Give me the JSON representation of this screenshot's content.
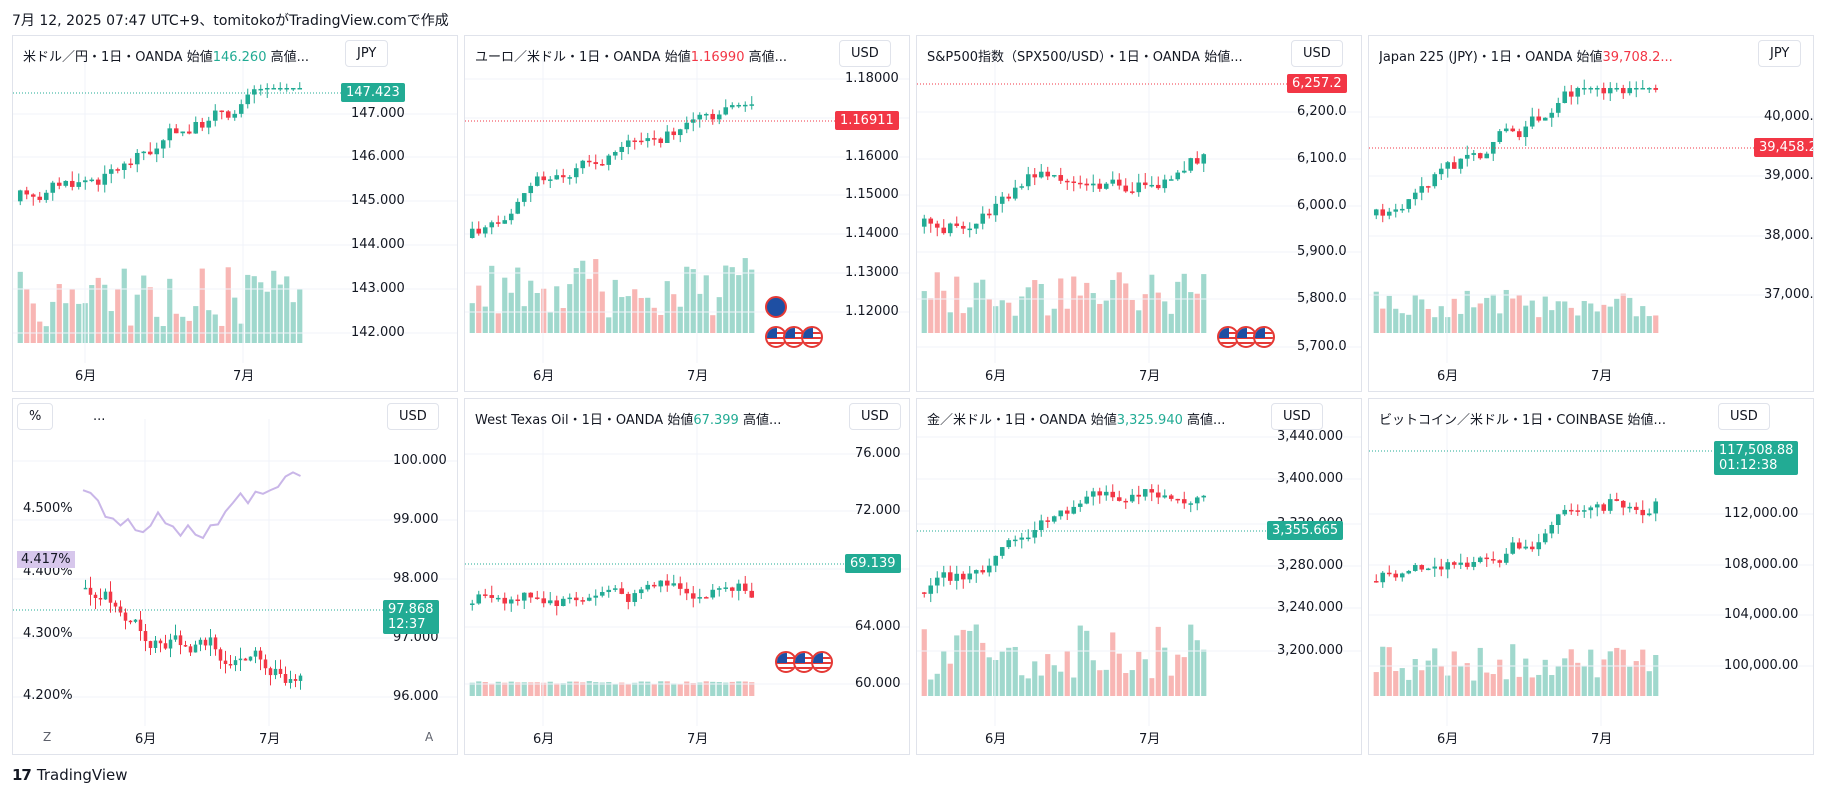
{
  "header": {
    "text": "7月 12, 2025 07:47 UTC+9、tomitokoがTradingView.comで作成"
  },
  "footer": {
    "logo_mark": "17",
    "brand": "TradingView"
  },
  "colors": {
    "up": "#22ab94",
    "down": "#f23645",
    "vol_up": "#8fd1c4",
    "vol_down": "#f7a9a7",
    "grid": "#f0f3fa",
    "axis_text": "#131722"
  },
  "panels": [
    {
      "title": "米ドル／円・1日・OANDA  始値146.260  高値...",
      "title_parts": {
        "name": "米ドル／円・1日・OANDA  始値",
        "open": "146.260",
        "rest": "  高値..."
      },
      "open_color": "up",
      "currency": "JPY",
      "yticks": [
        "147.000",
        "146.000",
        "145.000",
        "144.000",
        "143.000",
        "142.000"
      ],
      "last_price": "147.423",
      "last_color": "up",
      "xlabels": [
        "6月",
        "7月"
      ]
    },
    {
      "title": "ユーロ／米ドル・1日・OANDA  始値1.16990  高値...",
      "title_parts": {
        "name": "ユーロ／米ドル・1日・OANDA  始値",
        "open": "1.16990",
        "rest": "  高値..."
      },
      "open_color": "down",
      "currency": "USD",
      "yticks": [
        "1.18000",
        "1.17000",
        "1.16000",
        "1.15000",
        "1.14000",
        "1.13000",
        "1.12000"
      ],
      "last_price": "1.16911",
      "last_color": "down",
      "xlabels": [
        "6月",
        "7月"
      ]
    },
    {
      "title": "S&P500指数（SPX500/USD）・1日・OANDA  始値...",
      "title_parts": {
        "name": "S&P500指数（SPX500/USD）・1日・OANDA  始値...",
        "open": "",
        "rest": ""
      },
      "open_color": "up",
      "currency": "USD",
      "yticks": [
        "6,200.0",
        "6,100.0",
        "6,000.0",
        "5,900.0",
        "5,800.0",
        "5,700.0"
      ],
      "last_price": "6,257.2",
      "last_color": "down",
      "xlabels": [
        "6月",
        "7月"
      ]
    },
    {
      "title": "Japan 225 (JPY)・1日・OANDA  始値39,708.2...",
      "title_parts": {
        "name": "Japan 225 (JPY)・1日・OANDA  始値",
        "open": "39,708.2...",
        "rest": ""
      },
      "open_color": "down",
      "currency": "JPY",
      "yticks": [
        "40,000.0",
        "39,000.0",
        "38,000.0",
        "37,000.0"
      ],
      "last_price": "39,458.2",
      "last_color": "down",
      "xlabels": [
        "6月",
        "7月"
      ]
    },
    {
      "title": "...",
      "title_parts": {
        "name": "...",
        "open": "",
        "rest": ""
      },
      "open_color": "up",
      "currency": "USD",
      "left_badge": "%",
      "yticks": [
        "100.000",
        "99.000",
        "98.000",
        "97.000",
        "96.000"
      ],
      "left_ticks": [
        "4.500%",
        "4.400%",
        "4.300%",
        "4.200%"
      ],
      "left_tag": "4.417%",
      "last_price": "97.868",
      "last_sub": "12:37",
      "last_color": "up",
      "xlabels": [
        "6月",
        "7月"
      ],
      "bottom_left": "Z",
      "bottom_right": "A"
    },
    {
      "title": "West Texas Oil・1日・OANDA  始値67.399  高値...",
      "title_parts": {
        "name": "West Texas Oil・1日・OANDA  始値",
        "open": "67.399",
        "rest": "  高値..."
      },
      "open_color": "up",
      "currency": "USD",
      "yticks": [
        "76.000",
        "72.000",
        "68.000",
        "64.000",
        "60.000"
      ],
      "last_price": "69.139",
      "last_color": "up",
      "xlabels": [
        "6月",
        "7月"
      ]
    },
    {
      "title": "金／米ドル・1日・OANDA  始値3,325.940  高値...",
      "title_parts": {
        "name": "金／米ドル・1日・OANDA  始値",
        "open": "3,325.940",
        "rest": "  高値..."
      },
      "open_color": "up",
      "currency": "USD",
      "yticks": [
        "3,440.000",
        "3,400.000",
        "3,320.000",
        "3,280.000",
        "3,240.000",
        "3,200.000"
      ],
      "last_price": "3,355.665",
      "last_color": "up",
      "xlabels": [
        "6月",
        "7月"
      ]
    },
    {
      "title": "ビットコイン／米ドル・1日・COINBASE  始値...",
      "title_parts": {
        "name": "ビットコイン／米ドル・1日・COINBASE  始値...",
        "open": "",
        "rest": ""
      },
      "open_color": "up",
      "currency": "USD",
      "yticks": [
        "112,000.00",
        "108,000.00",
        "104,000.00",
        "100,000.00"
      ],
      "last_price": "117,508.88",
      "last_sub": "01:12:38",
      "last_color": "up",
      "xlabels": [
        "6月",
        "7月"
      ]
    }
  ],
  "chart_data": [
    {
      "type": "candlestick",
      "symbol": "USDJPY",
      "currency": "JPY",
      "ylim": [
        141.5,
        148.2
      ],
      "last": 147.423,
      "x_labels": [
        "6月",
        "7月"
      ]
    },
    {
      "type": "candlestick",
      "symbol": "EURUSD",
      "currency": "USD",
      "ylim": [
        1.113,
        1.181
      ],
      "last": 1.16911,
      "x_labels": [
        "6月",
        "7月"
      ]
    },
    {
      "type": "candlestick",
      "symbol": "SPX500USD",
      "currency": "USD",
      "ylim": [
        5695,
        6260
      ],
      "last": 6257.2,
      "x_labels": [
        "6月",
        "7月"
      ]
    },
    {
      "type": "candlestick",
      "symbol": "JP225",
      "currency": "JPY",
      "ylim": [
        36300,
        40700
      ],
      "last": 39458.2,
      "x_labels": [
        "6月",
        "7月"
      ]
    },
    {
      "type": "candlestick",
      "symbol": "DXY / US10Y",
      "currency": "USD",
      "ylim": [
        95.95,
        100.5
      ],
      "last": 97.868,
      "x_labels": [
        "6月",
        "7月"
      ]
    },
    {
      "type": "candlestick",
      "symbol": "WTICOUSD",
      "currency": "USD",
      "ylim": [
        58.5,
        78
      ],
      "last": 69.139,
      "x_labels": [
        "6月",
        "7月"
      ]
    },
    {
      "type": "candlestick",
      "symbol": "XAUUSD",
      "currency": "USD",
      "ylim": [
        3185,
        3450
      ],
      "last": 3355.665,
      "x_labels": [
        "6月",
        "7月"
      ]
    },
    {
      "type": "candlestick",
      "symbol": "BTCUSD",
      "currency": "USD",
      "ylim": [
        97000,
        118500
      ],
      "last": 117508.88,
      "x_labels": [
        "6月",
        "7月"
      ]
    }
  ]
}
